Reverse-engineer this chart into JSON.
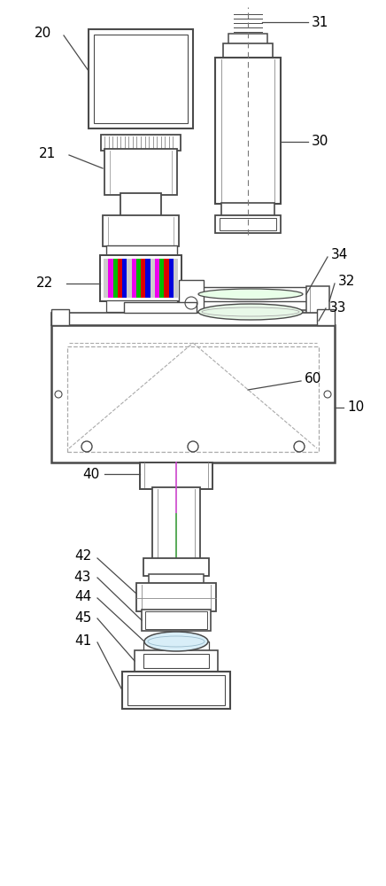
{
  "bg_color": "#ffffff",
  "lc": "#4a4a4a",
  "dc": "#aaaaaa",
  "fig_w": 4.36,
  "fig_h": 10.0,
  "dpi": 100
}
